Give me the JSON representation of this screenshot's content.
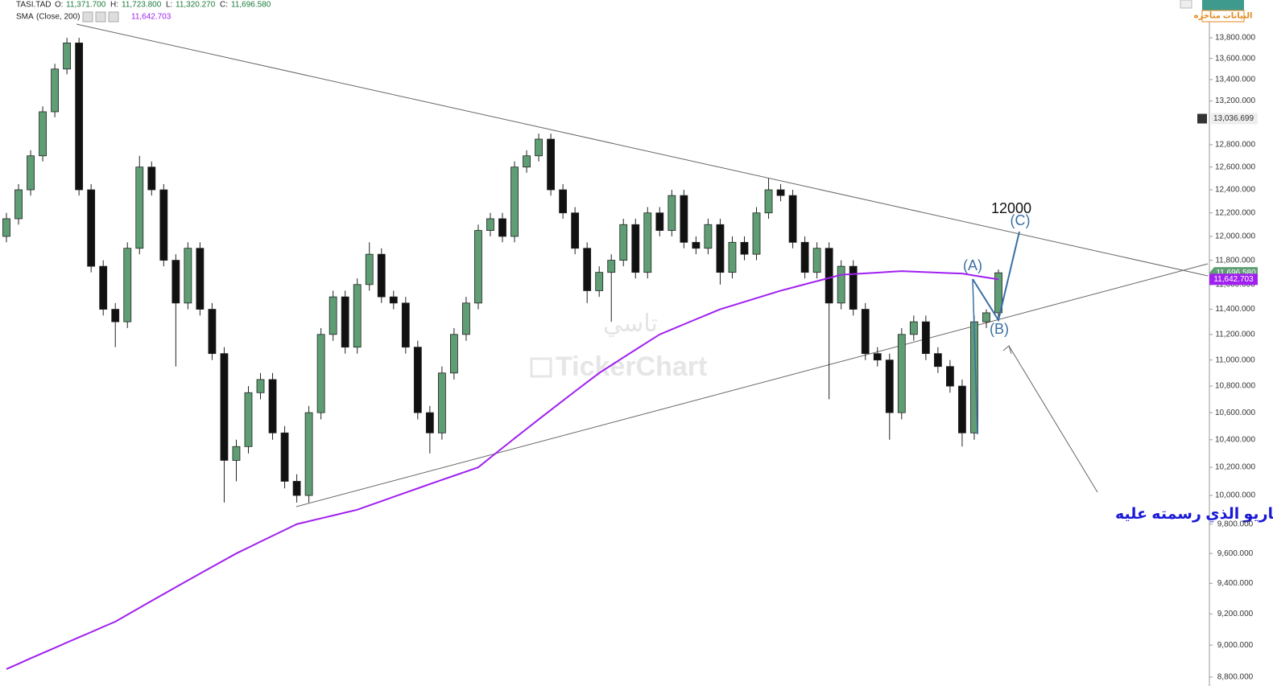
{
  "chart_data": {
    "type": "candlestick",
    "header": {
      "symbol": "TASI.TAD",
      "open_label": "O:",
      "open": "11,371.700",
      "high_label": "H:",
      "high": "11,723.800",
      "low_label": "L:",
      "low": "11,320.270",
      "close_label": "C:",
      "close": "11,696.580",
      "sma_name": "SMA",
      "sma_params": "(Close, 200)",
      "sma_value": "11,642.703"
    },
    "badge": "البيانات متأخره",
    "watermark": [
      "تاسي",
      "TickerChart"
    ],
    "annotations": {
      "target": "12000",
      "a": "(A)",
      "b": "(B)",
      "c": "(C)",
      "note": "كما ترون بتحديث الشارت اعلاه طبقت الحركه السيناريو  الذي رسمته عليه"
    },
    "log_scale": true,
    "ylim": [
      8745,
      14172
    ],
    "yticks": [
      {
        "value": 8800,
        "label": "8,800.000"
      },
      {
        "value": 9000,
        "label": "9,000.000"
      },
      {
        "value": 9200,
        "label": "9,200.000"
      },
      {
        "value": 9400,
        "label": "9,400.000"
      },
      {
        "value": 9600,
        "label": "9,600.000"
      },
      {
        "value": 9800,
        "label": "9,800.000"
      },
      {
        "value": 10000,
        "label": "10,000.000"
      },
      {
        "value": 10200,
        "label": "10,200.000"
      },
      {
        "value": 10400,
        "label": "10,400.000"
      },
      {
        "value": 10600,
        "label": "10,600.000"
      },
      {
        "value": 10800,
        "label": "10,800.000"
      },
      {
        "value": 11000,
        "label": "11,000.000"
      },
      {
        "value": 11200,
        "label": "11,200.000"
      },
      {
        "value": 11400,
        "label": "11,400.000"
      },
      {
        "value": 11600,
        "label": "11,600.000"
      },
      {
        "value": 11800,
        "label": "11,800.000"
      },
      {
        "value": 12000,
        "label": "12,000.000"
      },
      {
        "value": 12200,
        "label": "12,200.000"
      },
      {
        "value": 12400,
        "label": "12,400.000"
      },
      {
        "value": 12600,
        "label": "12,600.000"
      },
      {
        "value": 12800,
        "label": "12,800.000"
      },
      {
        "value": 13200,
        "label": "13,200.000"
      },
      {
        "value": 13400,
        "label": "13,400.000"
      },
      {
        "value": 13600,
        "label": "13,600.000"
      },
      {
        "value": 13800,
        "label": "13,800.000"
      }
    ],
    "crosshair": {
      "value": 13036.699,
      "label": "13,036.699"
    },
    "up_color": "#5f9e75",
    "down_color": "#111111",
    "sma_color": "#a020f0",
    "ohlc": [
      [
        12000,
        12200,
        11950,
        12150
      ],
      [
        12150,
        12450,
        12100,
        12400
      ],
      [
        12400,
        12750,
        12350,
        12700
      ],
      [
        12700,
        13150,
        12650,
        13100
      ],
      [
        13100,
        13550,
        13050,
        13500
      ],
      [
        13500,
        13800,
        13450,
        13750
      ],
      [
        13750,
        13800,
        12350,
        12400
      ],
      [
        12400,
        12450,
        11700,
        11750
      ],
      [
        11750,
        11800,
        11350,
        11400
      ],
      [
        11400,
        11450,
        11100,
        11300
      ],
      [
        11300,
        11950,
        11250,
        11900
      ],
      [
        11900,
        12700,
        11850,
        12600
      ],
      [
        12600,
        12650,
        12350,
        12400
      ],
      [
        12400,
        12450,
        11750,
        11800
      ],
      [
        11800,
        11850,
        10950,
        11450
      ],
      [
        11450,
        11950,
        11400,
        11900
      ],
      [
        11900,
        11950,
        11350,
        11400
      ],
      [
        11400,
        11450,
        11000,
        11050
      ],
      [
        11050,
        11100,
        9950,
        10250
      ],
      [
        10250,
        10400,
        10100,
        10350
      ],
      [
        10350,
        10800,
        10300,
        10750
      ],
      [
        10750,
        10900,
        10700,
        10850
      ],
      [
        10850,
        10900,
        10400,
        10450
      ],
      [
        10450,
        10500,
        10050,
        10100
      ],
      [
        10100,
        10150,
        9950,
        10000
      ],
      [
        10000,
        10650,
        9950,
        10600
      ],
      [
        10600,
        11250,
        10550,
        11200
      ],
      [
        11200,
        11550,
        11150,
        11500
      ],
      [
        11500,
        11550,
        11050,
        11100
      ],
      [
        11100,
        11650,
        11050,
        11600
      ],
      [
        11600,
        11950,
        11550,
        11850
      ],
      [
        11850,
        11900,
        11450,
        11500
      ],
      [
        11500,
        11550,
        11400,
        11450
      ],
      [
        11450,
        11500,
        11050,
        11100
      ],
      [
        11100,
        11150,
        10550,
        10600
      ],
      [
        10600,
        10650,
        10300,
        10450
      ],
      [
        10450,
        10950,
        10400,
        10900
      ],
      [
        10900,
        11250,
        10850,
        11200
      ],
      [
        11200,
        11500,
        11150,
        11450
      ],
      [
        11450,
        12100,
        11400,
        12050
      ],
      [
        12050,
        12200,
        12000,
        12150
      ],
      [
        12150,
        12200,
        11950,
        12000
      ],
      [
        12000,
        12650,
        11950,
        12600
      ],
      [
        12600,
        12750,
        12550,
        12700
      ],
      [
        12700,
        12900,
        12650,
        12850
      ],
      [
        12850,
        12900,
        12350,
        12400
      ],
      [
        12400,
        12450,
        12150,
        12200
      ],
      [
        12200,
        12250,
        11850,
        11900
      ],
      [
        11900,
        11950,
        11450,
        11550
      ],
      [
        11550,
        11750,
        11500,
        11700
      ],
      [
        11700,
        11850,
        11300,
        11800
      ],
      [
        11800,
        12150,
        11750,
        12100
      ],
      [
        12100,
        12150,
        11650,
        11700
      ],
      [
        11700,
        12250,
        11650,
        12200
      ],
      [
        12200,
        12250,
        12000,
        12050
      ],
      [
        12050,
        12400,
        12000,
        12350
      ],
      [
        12350,
        12400,
        11900,
        11950
      ],
      [
        11950,
        12000,
        11850,
        11900
      ],
      [
        11900,
        12150,
        11850,
        12100
      ],
      [
        12100,
        12150,
        11600,
        11700
      ],
      [
        11700,
        12000,
        11650,
        11950
      ],
      [
        11950,
        12000,
        11800,
        11850
      ],
      [
        11850,
        12250,
        11800,
        12200
      ],
      [
        12200,
        12500,
        12150,
        12400
      ],
      [
        12400,
        12450,
        12300,
        12350
      ],
      [
        12350,
        12400,
        11900,
        11950
      ],
      [
        11950,
        12000,
        11650,
        11700
      ],
      [
        11700,
        11950,
        11650,
        11900
      ],
      [
        11900,
        11950,
        10700,
        11450
      ],
      [
        11450,
        11800,
        11400,
        11750
      ],
      [
        11750,
        11800,
        11350,
        11400
      ],
      [
        11400,
        11450,
        11000,
        11050
      ],
      [
        11050,
        11100,
        10950,
        11000
      ],
      [
        11000,
        11050,
        10400,
        10600
      ],
      [
        10600,
        11250,
        10550,
        11200
      ],
      [
        11200,
        11350,
        11150,
        11300
      ],
      [
        11300,
        11350,
        11000,
        11050
      ],
      [
        11050,
        11100,
        10900,
        10950
      ],
      [
        10950,
        11000,
        10750,
        10800
      ],
      [
        10800,
        10850,
        10350,
        10450
      ],
      [
        10450,
        11350,
        10400,
        11300
      ],
      [
        11300,
        11400,
        11250,
        11371.7
      ],
      [
        11371.7,
        11723.8,
        11320.27,
        11696.58
      ]
    ],
    "sma": [
      8850,
      8883,
      8917,
      8950,
      8983,
      9017,
      9050,
      9083,
      9117,
      9150,
      9195,
      9240,
      9285,
      9330,
      9375,
      9420,
      9465,
      9510,
      9555,
      9600,
      9640,
      9680,
      9720,
      9760,
      9800,
      9820,
      9840,
      9860,
      9880,
      9900,
      9930,
      9960,
      9990,
      10020,
      10050,
      10080,
      10110,
      10140,
      10170,
      10200,
      10270,
      10340,
      10410,
      10480,
      10550,
      10620,
      10690,
      10760,
      10830,
      10900,
      10960,
      11020,
      11080,
      11140,
      11200,
      11240,
      11280,
      11320,
      11360,
      11400,
      11430,
      11460,
      11490,
      11520,
      11550,
      11576,
      11602,
      11628,
      11654,
      11680,
      11686,
      11692,
      11698,
      11704,
      11710,
      11706,
      11702,
      11698,
      11694,
      11690,
      11674,
      11658,
      11642.703
    ]
  }
}
